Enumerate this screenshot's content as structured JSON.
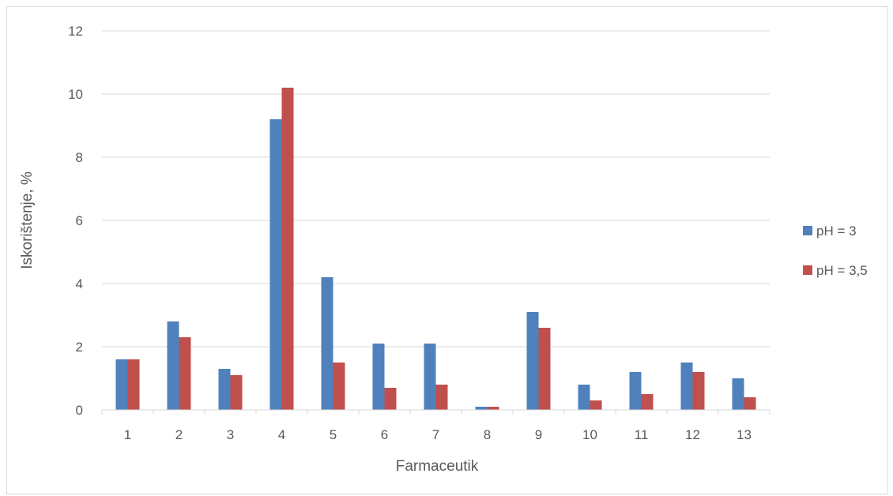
{
  "chart_data": {
    "type": "bar",
    "title": "",
    "xlabel": "Farmaceutik",
    "ylabel": "Iskorištenje, %",
    "categories": [
      "1",
      "2",
      "3",
      "4",
      "5",
      "6",
      "7",
      "8",
      "9",
      "10",
      "11",
      "12",
      "13"
    ],
    "ylim": [
      0,
      12
    ],
    "yticks": [
      0,
      2,
      4,
      6,
      8,
      10,
      12
    ],
    "grid": true,
    "legend_position": "right",
    "series": [
      {
        "name": "pH = 3",
        "color": "#4f81bd",
        "values": [
          1.6,
          2.8,
          1.3,
          9.2,
          4.2,
          2.1,
          2.1,
          0.1,
          3.1,
          0.8,
          1.2,
          1.5,
          1.0
        ]
      },
      {
        "name": "pH = 3,5",
        "color": "#c0504d",
        "values": [
          1.6,
          2.3,
          1.1,
          10.2,
          1.5,
          0.7,
          0.8,
          0.1,
          2.6,
          0.3,
          0.5,
          1.2,
          0.4
        ]
      }
    ]
  }
}
